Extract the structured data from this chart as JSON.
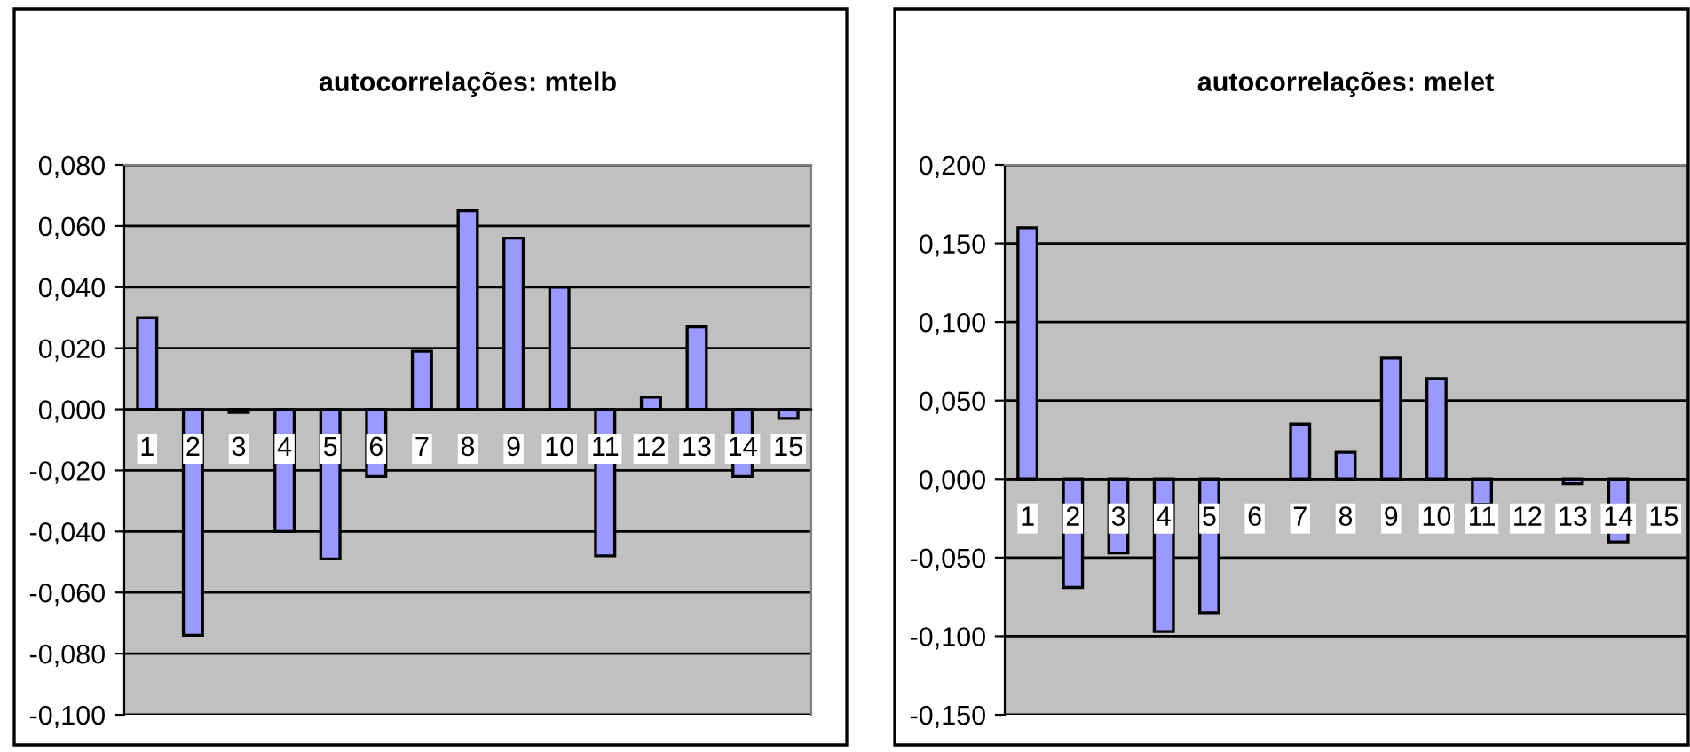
{
  "chart_data": [
    {
      "type": "bar",
      "title": "autocorrelações: mtelb",
      "categories": [
        "1",
        "2",
        "3",
        "4",
        "5",
        "6",
        "7",
        "8",
        "9",
        "10",
        "11",
        "12",
        "13",
        "14",
        "15"
      ],
      "values": [
        0.03,
        -0.074,
        -0.001,
        -0.04,
        -0.049,
        -0.022,
        0.019,
        0.065,
        0.056,
        0.04,
        -0.048,
        0.004,
        0.027,
        -0.022,
        -0.003
      ],
      "color": "#9999ff",
      "ylim": [
        -0.1,
        0.08
      ],
      "yticks": [
        {
          "value": -0.1,
          "label": "-0,100"
        },
        {
          "value": -0.08,
          "label": "-0,080"
        },
        {
          "value": -0.06,
          "label": "-0,060"
        },
        {
          "value": -0.04,
          "label": "-0,040"
        },
        {
          "value": -0.02,
          "label": "-0,020"
        },
        {
          "value": 0,
          "label": "0,000"
        },
        {
          "value": 0.02,
          "label": "0,020"
        },
        {
          "value": 0.04,
          "label": "0,040"
        },
        {
          "value": 0.06,
          "label": "0,060"
        },
        {
          "value": 0.08,
          "label": "0,080"
        }
      ],
      "grid": "y",
      "legend": false
    },
    {
      "type": "bar",
      "title": "autocorrelações: melet",
      "categories": [
        "1",
        "2",
        "3",
        "4",
        "5",
        "6",
        "7",
        "8",
        "9",
        "10",
        "11",
        "12",
        "13",
        "14",
        "15"
      ],
      "values": [
        0.16,
        -0.069,
        -0.047,
        -0.097,
        -0.085,
        null,
        0.035,
        0.017,
        0.077,
        0.064,
        -0.016,
        null,
        -0.003,
        -0.04,
        null
      ],
      "color": "#9999ff",
      "ylim": [
        -0.15,
        0.2
      ],
      "yticks": [
        {
          "value": -0.15,
          "label": "-0,150"
        },
        {
          "value": -0.1,
          "label": "-0,100"
        },
        {
          "value": -0.05,
          "label": "-0,050"
        },
        {
          "value": 0,
          "label": "0,000"
        },
        {
          "value": 0.05,
          "label": "0,050"
        },
        {
          "value": 0.1,
          "label": "0,100"
        },
        {
          "value": 0.15,
          "label": "0,150"
        },
        {
          "value": 0.2,
          "label": "0,200"
        }
      ],
      "grid": "y",
      "legend": false
    }
  ]
}
